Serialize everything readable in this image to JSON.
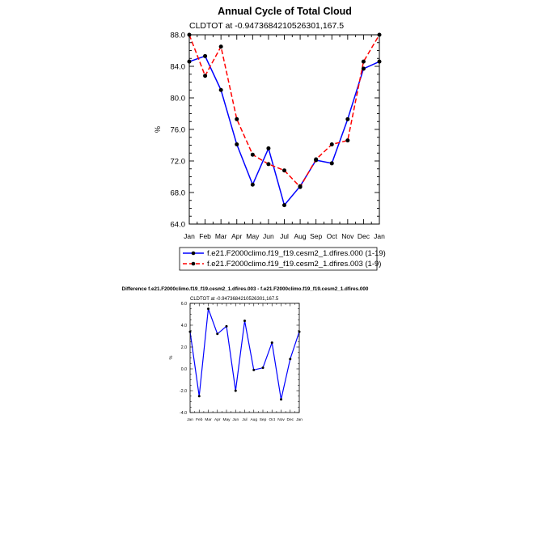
{
  "chart_data": [
    {
      "type": "line",
      "title": "Annual Cycle of Total Cloud",
      "subtitle": "CLDTOT at -0.9473684210526301,167.5",
      "xlabel": "",
      "ylabel": "%",
      "categories": [
        "Jan",
        "Feb",
        "Mar",
        "Apr",
        "May",
        "Jun",
        "Jul",
        "Aug",
        "Sep",
        "Oct",
        "Nov",
        "Dec",
        "Jan"
      ],
      "ylim": [
        64.0,
        88.0
      ],
      "yticks": [
        "64.0",
        "68.0",
        "72.0",
        "76.0",
        "80.0",
        "84.0",
        "88.0"
      ],
      "legend_position": "bottom",
      "series": [
        {
          "name": "f.e21.F2000climo.f19_f19.cesm2_1.dfires.000 (1-19)",
          "color": "#0000ff",
          "dash": "solid",
          "values": [
            84.6,
            85.3,
            81.0,
            74.1,
            69.0,
            73.6,
            66.4,
            68.8,
            72.1,
            71.7,
            77.3,
            83.7,
            84.6
          ]
        },
        {
          "name": "f.e21.F2000climo.f19_f19.cesm2_1.dfires.003 (1-9)",
          "color": "#ff0000",
          "dash": "dashed",
          "values": [
            88.0,
            82.8,
            86.5,
            77.3,
            72.8,
            71.6,
            70.8,
            68.7,
            72.2,
            74.1,
            74.6,
            84.6,
            88.0
          ]
        }
      ]
    },
    {
      "type": "line",
      "title": "Difference f.e21.F2000climo.f19_f19.cesm2_1.dfires.003 - f.e21.F2000climo.f19_f19.cesm2_1.dfires.000",
      "subtitle": "CLDTOT at -0.9473684210526301,167.5",
      "xlabel": "",
      "ylabel": "%",
      "categories": [
        "Jan",
        "Feb",
        "Mar",
        "Apr",
        "May",
        "Jun",
        "Jul",
        "Aug",
        "Sep",
        "Oct",
        "Nov",
        "Dec",
        "Jan"
      ],
      "ylim": [
        -4.0,
        6.0
      ],
      "yticks": [
        "-4.0",
        "-2.0",
        "0.0",
        "2.0",
        "4.0",
        "6.0"
      ],
      "series": [
        {
          "color": "#0000ff",
          "dash": "solid",
          "values": [
            3.4,
            -2.5,
            5.5,
            3.2,
            3.9,
            -2.0,
            4.4,
            -0.1,
            0.1,
            2.4,
            -2.8,
            0.9,
            3.4
          ]
        }
      ]
    }
  ]
}
